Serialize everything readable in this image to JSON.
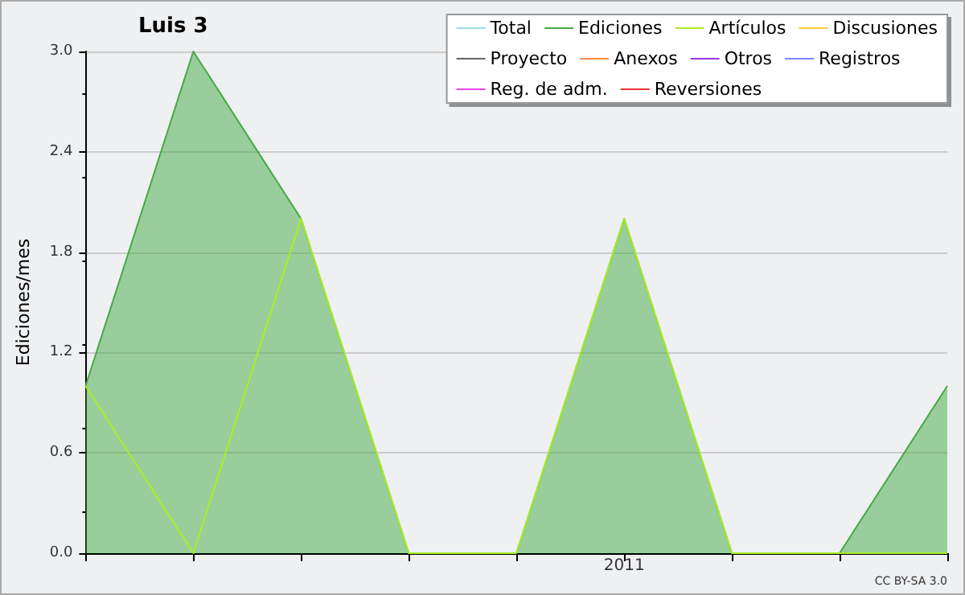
{
  "chart_data": {
    "type": "line",
    "title": "Luis 3",
    "ylabel": "Ediciones/mes",
    "categories": [
      null,
      null,
      null,
      null,
      null,
      "2011",
      null,
      null,
      null
    ],
    "series": [
      {
        "name": "Total",
        "color": "#99dddd",
        "values": [
          null,
          null,
          null,
          null,
          null,
          null,
          null,
          null,
          null
        ]
      },
      {
        "name": "Ediciones",
        "color": "#44aa44",
        "type": "area",
        "values": [
          1,
          3,
          2,
          0,
          0,
          2,
          0,
          0,
          1
        ]
      },
      {
        "name": "Artículos",
        "color": "#aaee22",
        "values": [
          1,
          0,
          2,
          0,
          0,
          2,
          0,
          0,
          0
        ]
      },
      {
        "name": "Discusiones",
        "color": "#ffcc33",
        "values": [
          null,
          null,
          null,
          null,
          null,
          null,
          null,
          null,
          null
        ]
      },
      {
        "name": "Proyecto",
        "color": "#666666",
        "values": [
          null,
          null,
          null,
          null,
          null,
          null,
          null,
          null,
          null
        ]
      },
      {
        "name": "Anexos",
        "color": "#ff8844",
        "values": [
          null,
          null,
          null,
          null,
          null,
          null,
          null,
          null,
          null
        ]
      },
      {
        "name": "Otros",
        "color": "#9933ee",
        "values": [
          null,
          null,
          null,
          null,
          null,
          null,
          null,
          null,
          null
        ]
      },
      {
        "name": "Registros",
        "color": "#7788ff",
        "values": [
          null,
          null,
          null,
          null,
          null,
          null,
          null,
          null,
          null
        ]
      },
      {
        "name": "Reg. de adm.",
        "color": "#ee44ee",
        "values": [
          null,
          null,
          null,
          null,
          null,
          null,
          null,
          null,
          null
        ]
      },
      {
        "name": "Reversiones",
        "color": "#ee3333",
        "values": [
          null,
          null,
          null,
          null,
          null,
          null,
          null,
          null,
          null
        ]
      }
    ],
    "ylim": [
      0,
      3
    ],
    "yticks": [
      {
        "value": 0,
        "label": "0.0"
      },
      {
        "value": 0.6,
        "label": "0.6"
      },
      {
        "value": 1.2,
        "label": "1.2"
      },
      {
        "value": 1.8,
        "label": "1.8"
      },
      {
        "value": 2.4,
        "label": "2.4"
      },
      {
        "value": 3,
        "label": "3.0"
      }
    ],
    "grid": "y",
    "legend": "top right",
    "marker": "none",
    "annotations": [
      "CC BY-SA 3.0"
    ]
  }
}
